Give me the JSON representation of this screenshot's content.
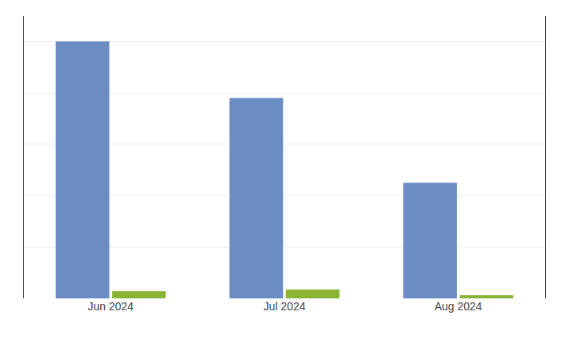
{
  "chart_data": {
    "type": "bar",
    "categories": [
      "Jun 2024",
      "Jul 2024",
      "Aug 2024"
    ],
    "series": [
      {
        "color": "#6b8dc4",
        "values": [
          1000,
          780,
          450
        ]
      },
      {
        "color": "#8ab534",
        "values": [
          28,
          35,
          12
        ]
      }
    ],
    "ylim": [
      0,
      1100
    ],
    "yticks": [
      0,
      200,
      400,
      600,
      800,
      1000
    ],
    "grid": true,
    "tick_labels": "x"
  }
}
